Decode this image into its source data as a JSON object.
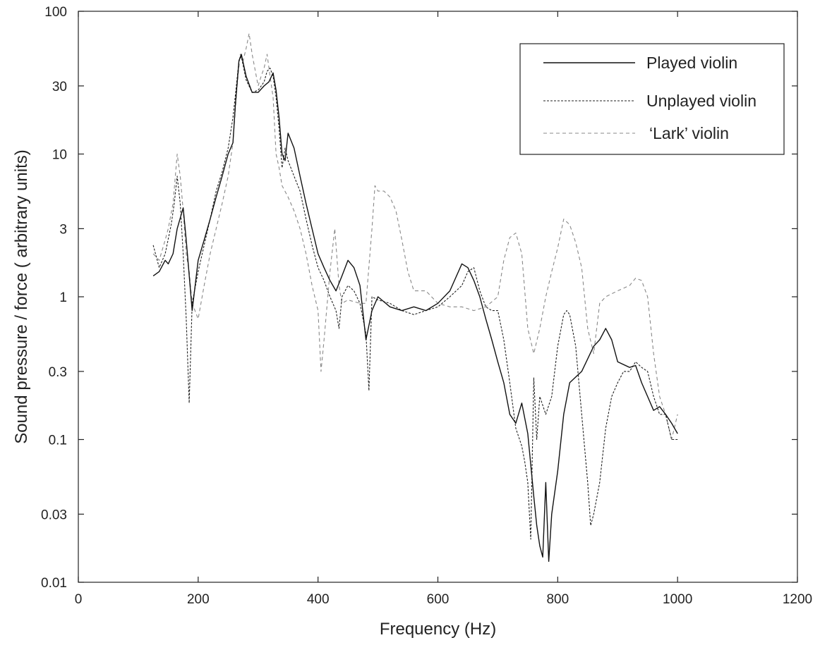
{
  "chart_data": {
    "type": "line",
    "xlabel": "Frequency (Hz)",
    "ylabel": "Sound pressure / force ( arbitrary units)",
    "xlim": [
      0,
      1200
    ],
    "ylim": [
      0.01,
      100
    ],
    "yscale": "log",
    "xticks": [
      0,
      200,
      400,
      600,
      800,
      1000,
      1200
    ],
    "xtick_labels": [
      "0",
      "200",
      "400",
      "600",
      "800",
      "1000",
      "1200"
    ],
    "yticks": [
      0.01,
      0.03,
      0.1,
      0.3,
      1,
      3,
      10,
      30,
      100
    ],
    "ytick_labels": [
      "0.01",
      "0.03",
      "0.1",
      "0.3",
      "1",
      "3",
      "10",
      "30",
      "100"
    ],
    "grid": false,
    "legend_position": "top-right",
    "series": [
      {
        "name": "Played violin",
        "style": "solid",
        "color": "#111111",
        "x": [
          125,
          135,
          145,
          150,
          158,
          165,
          175,
          180,
          190,
          200,
          210,
          220,
          230,
          240,
          250,
          258,
          262,
          268,
          272,
          280,
          290,
          300,
          310,
          318,
          325,
          330,
          335,
          340,
          345,
          350,
          360,
          370,
          380,
          390,
          400,
          410,
          420,
          430,
          440,
          450,
          460,
          470,
          480,
          490,
          500,
          520,
          540,
          560,
          580,
          600,
          620,
          640,
          650,
          660,
          670,
          680,
          690,
          700,
          710,
          720,
          730,
          740,
          750,
          760,
          765,
          770,
          775,
          780,
          785,
          790,
          800,
          810,
          820,
          840,
          860,
          870,
          880,
          890,
          900,
          920,
          930,
          940,
          950,
          960,
          970,
          980,
          990,
          1000
        ],
        "y": [
          1.4,
          1.5,
          1.8,
          1.7,
          2.0,
          3.0,
          4.2,
          2.5,
          0.8,
          1.8,
          2.5,
          3.5,
          5.0,
          7.0,
          10.0,
          12.0,
          22.0,
          45.0,
          50.0,
          35.0,
          27.0,
          27.0,
          30.0,
          32.0,
          37.0,
          28.0,
          18.0,
          10.0,
          9.0,
          14.0,
          11.0,
          7.0,
          4.5,
          3.0,
          2.0,
          1.6,
          1.3,
          1.1,
          1.4,
          1.8,
          1.6,
          1.2,
          0.5,
          0.8,
          1.0,
          0.85,
          0.8,
          0.85,
          0.8,
          0.9,
          1.1,
          1.7,
          1.6,
          1.3,
          1.0,
          0.7,
          0.5,
          0.35,
          0.25,
          0.15,
          0.13,
          0.18,
          0.11,
          0.04,
          0.025,
          0.018,
          0.015,
          0.05,
          0.014,
          0.03,
          0.06,
          0.15,
          0.25,
          0.3,
          0.45,
          0.5,
          0.6,
          0.5,
          0.35,
          0.32,
          0.33,
          0.25,
          0.2,
          0.16,
          0.17,
          0.15,
          0.13,
          0.11
        ]
      },
      {
        "name": "Unplayed violin",
        "style": "dashed",
        "color": "#222222",
        "x": [
          125,
          135,
          145,
          155,
          160,
          165,
          170,
          175,
          180,
          185,
          190,
          200,
          210,
          220,
          230,
          240,
          250,
          258,
          263,
          268,
          272,
          280,
          290,
          300,
          310,
          315,
          320,
          325,
          330,
          335,
          340,
          345,
          350,
          360,
          370,
          380,
          390,
          400,
          410,
          420,
          430,
          435,
          440,
          450,
          460,
          470,
          480,
          485,
          490,
          500,
          520,
          540,
          560,
          580,
          600,
          620,
          640,
          650,
          660,
          670,
          680,
          690,
          700,
          710,
          720,
          730,
          740,
          745,
          750,
          755,
          760,
          765,
          770,
          780,
          790,
          800,
          810,
          815,
          820,
          830,
          840,
          850,
          855,
          860,
          870,
          880,
          890,
          900,
          910,
          920,
          930,
          940,
          950,
          960,
          970,
          980,
          990,
          1000
        ],
        "y": [
          2.3,
          1.6,
          2.0,
          3.2,
          4.5,
          7.0,
          4.5,
          2.0,
          0.7,
          0.18,
          0.9,
          1.5,
          2.3,
          3.5,
          5.5,
          7.5,
          11.0,
          18.0,
          28.0,
          45.0,
          48.0,
          33.0,
          27.0,
          28.0,
          32.0,
          38.0,
          40.0,
          35.0,
          25.0,
          15.0,
          8.0,
          11.0,
          9.0,
          7.0,
          5.5,
          3.5,
          2.3,
          1.6,
          1.3,
          1.0,
          0.8,
          0.6,
          1.0,
          1.2,
          1.1,
          0.9,
          0.55,
          0.22,
          1.0,
          0.95,
          0.9,
          0.8,
          0.75,
          0.8,
          0.85,
          1.0,
          1.2,
          1.5,
          1.6,
          1.1,
          0.85,
          0.8,
          0.8,
          0.5,
          0.25,
          0.12,
          0.09,
          0.07,
          0.05,
          0.02,
          0.27,
          0.1,
          0.2,
          0.15,
          0.2,
          0.45,
          0.75,
          0.8,
          0.75,
          0.45,
          0.15,
          0.05,
          0.025,
          0.03,
          0.05,
          0.12,
          0.2,
          0.25,
          0.3,
          0.3,
          0.35,
          0.32,
          0.3,
          0.2,
          0.15,
          0.15,
          0.1,
          0.1
        ]
      },
      {
        "name": "‘Lark’ violin",
        "style": "dashed-light",
        "color": "#888888",
        "x": [
          125,
          135,
          145,
          150,
          158,
          165,
          170,
          175,
          180,
          185,
          190,
          200,
          210,
          220,
          230,
          240,
          250,
          258,
          265,
          270,
          275,
          280,
          285,
          290,
          300,
          305,
          310,
          315,
          320,
          325,
          330,
          335,
          340,
          350,
          360,
          370,
          380,
          390,
          400,
          405,
          410,
          420,
          428,
          435,
          440,
          450,
          470,
          480,
          490,
          495,
          500,
          510,
          520,
          530,
          540,
          550,
          560,
          580,
          600,
          620,
          640,
          660,
          680,
          700,
          710,
          720,
          730,
          740,
          750,
          760,
          770,
          780,
          790,
          800,
          810,
          820,
          830,
          840,
          850,
          860,
          870,
          880,
          900,
          920,
          930,
          940,
          950,
          960,
          970,
          980,
          990,
          1000
        ],
        "y": [
          2.0,
          1.8,
          2.5,
          3.0,
          4.5,
          10.0,
          7.0,
          4.0,
          2.0,
          1.5,
          0.9,
          0.7,
          1.2,
          2.0,
          3.0,
          4.5,
          7.0,
          12.0,
          30.0,
          50.0,
          45.0,
          55.0,
          70.0,
          50.0,
          30.0,
          35.0,
          40.0,
          50.0,
          35.0,
          25.0,
          10.0,
          8.0,
          6.0,
          5.0,
          4.0,
          3.0,
          2.0,
          1.2,
          0.8,
          0.3,
          0.5,
          1.5,
          3.0,
          1.2,
          0.9,
          0.95,
          0.9,
          0.9,
          3.0,
          6.0,
          5.5,
          5.5,
          5.0,
          4.0,
          2.5,
          1.5,
          1.1,
          1.1,
          0.9,
          0.85,
          0.85,
          0.8,
          0.85,
          1.0,
          1.8,
          2.6,
          2.8,
          2.0,
          0.6,
          0.4,
          0.6,
          1.0,
          1.5,
          2.2,
          3.5,
          3.2,
          2.4,
          1.6,
          0.6,
          0.4,
          0.9,
          1.0,
          1.1,
          1.2,
          1.35,
          1.3,
          1.0,
          0.4,
          0.2,
          0.15,
          0.1,
          0.15
        ]
      }
    ]
  }
}
